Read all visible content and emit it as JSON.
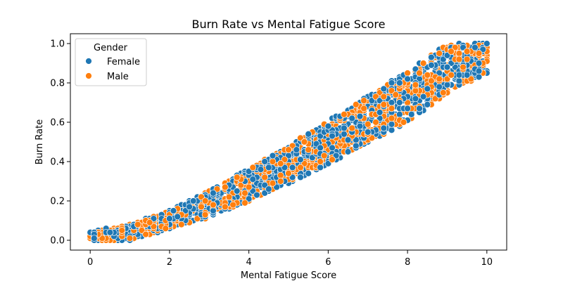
{
  "chart_data": {
    "type": "scatter",
    "title": "Burn Rate vs Mental Fatigue Score",
    "xlabel": "Mental Fatigue Score",
    "ylabel": "Burn Rate",
    "xlim": [
      -0.5,
      10.5
    ],
    "ylim": [
      -0.05,
      1.05
    ],
    "xticks": [
      0,
      2,
      4,
      6,
      8,
      10
    ],
    "xtick_labels": [
      "0",
      "2",
      "4",
      "6",
      "8",
      "10"
    ],
    "yticks": [
      0.0,
      0.2,
      0.4,
      0.6,
      0.8,
      1.0
    ],
    "ytick_labels": [
      "0.0",
      "0.2",
      "0.4",
      "0.6",
      "0.8",
      "1.0"
    ],
    "grid": false,
    "legend": {
      "title": "Gender",
      "placement": "top-left",
      "entries": [
        {
          "label": "Female",
          "color": "#1f77b4"
        },
        {
          "label": "Male",
          "color": "#ff7f0e"
        }
      ]
    },
    "band": {
      "note": "Dense point cloud following a curved band",
      "x": [
        0,
        1,
        2,
        3,
        4,
        5,
        6,
        7,
        8,
        9,
        10
      ],
      "lower": [
        0.0,
        0.0,
        0.06,
        0.12,
        0.2,
        0.29,
        0.39,
        0.5,
        0.6,
        0.75,
        0.85
      ],
      "upper": [
        0.04,
        0.08,
        0.15,
        0.25,
        0.36,
        0.48,
        0.61,
        0.73,
        0.86,
        1.0,
        1.0
      ]
    },
    "series": [
      {
        "name": "Female",
        "color": "#1f77b4",
        "n_points": 1200
      },
      {
        "name": "Male",
        "color": "#ff7f0e",
        "n_points": 1000
      }
    ]
  }
}
